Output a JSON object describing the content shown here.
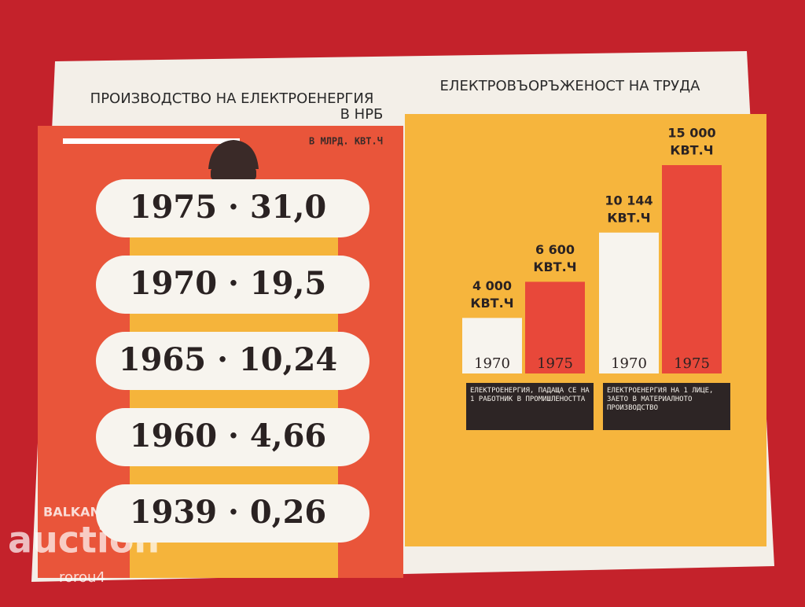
{
  "left": {
    "title": [
      "ПРОИЗВОДСТВО НА ЕЛЕКТРОЕНЕРГИЯ",
      "В НРБ"
    ],
    "unit": "В МЛРД. КВТ.Ч",
    "rows": [
      {
        "year": "1975",
        "value": "31,0"
      },
      {
        "year": "1970",
        "value": "19,5"
      },
      {
        "year": "1965",
        "value": "10,24"
      },
      {
        "year": "1960",
        "value": "4,66"
      },
      {
        "year": "1939",
        "value": "0,26"
      }
    ]
  },
  "right": {
    "title": "ЕЛЕКТРОВЪОРЪЖЕНОСТ НА ТРУДА",
    "groups": [
      {
        "caption": "ЕЛЕКТРОЕНЕРГИЯ, ПАДАЩА СЕ НА 1 РАБОТНИК В ПРОМИШЛЕНОСТТА",
        "bars": [
          {
            "year": "1970",
            "value": 4000,
            "label": "4 000",
            "unit": "КВТ.Ч",
            "color": "#f7f4ee"
          },
          {
            "year": "1975",
            "value": 6600,
            "label": "6 600",
            "unit": "КВТ.Ч",
            "color": "#e8483a"
          }
        ]
      },
      {
        "caption": "ЕЛЕКТРОЕНЕРГИЯ НА 1 ЛИЦЕ, ЗАЕТО В МАТЕРИАЛНОТО ПРОИЗВОДСТВО",
        "bars": [
          {
            "year": "1970",
            "value": 10144,
            "label": "10 144",
            "unit": "КВТ.Ч",
            "color": "#f7f4ee"
          },
          {
            "year": "1975",
            "value": 15000,
            "label": "15 000",
            "unit": "КВТ.Ч",
            "color": "#e8483a"
          }
        ]
      }
    ]
  },
  "watermark": [
    "BALKAN",
    "auction",
    "rorou4"
  ]
}
